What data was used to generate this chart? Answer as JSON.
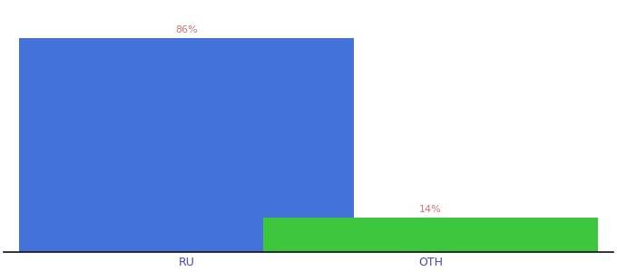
{
  "categories": [
    "RU",
    "OTH"
  ],
  "values": [
    86,
    14
  ],
  "bar_colors": [
    "#4472db",
    "#3dc63d"
  ],
  "label_color": "#c87878",
  "label_fontsize": 8,
  "tick_label_color": "#4444bb",
  "tick_fontsize": 9,
  "background_color": "#ffffff",
  "ylim": [
    0,
    100
  ],
  "bar_width": 0.55,
  "spine_color": "#111111"
}
